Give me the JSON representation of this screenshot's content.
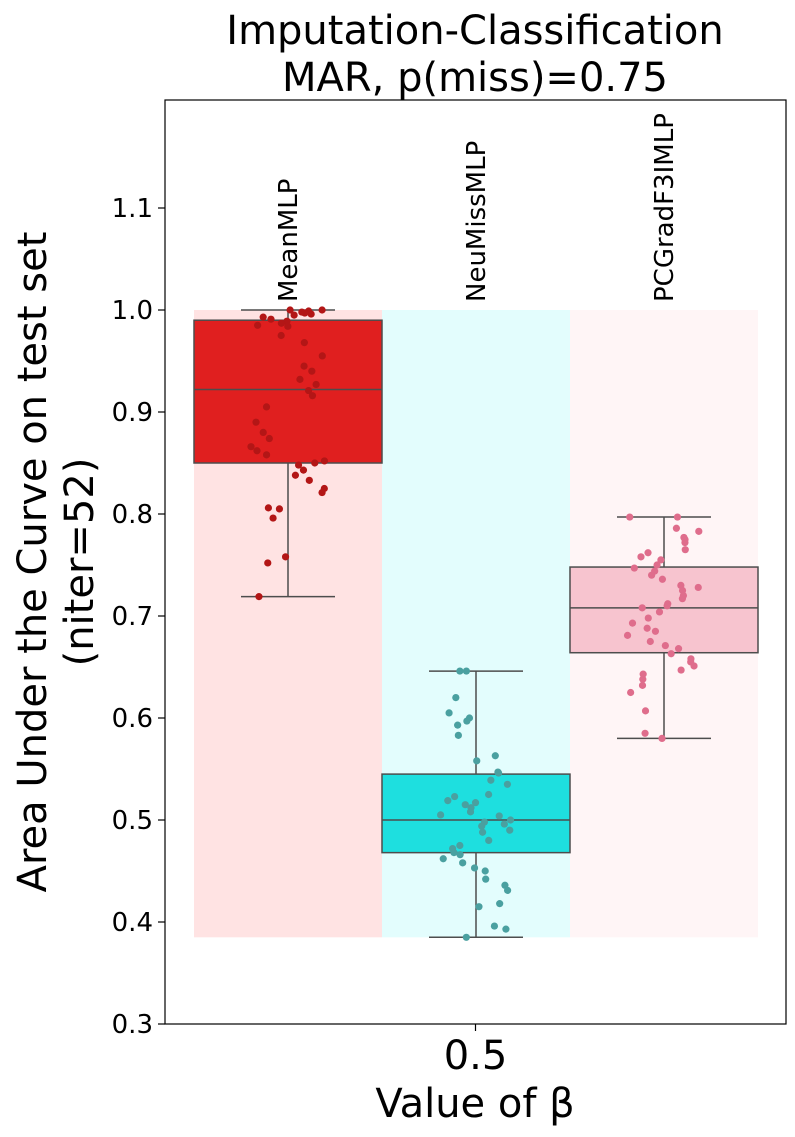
{
  "chart_data": {
    "type": "box",
    "title": [
      "Imputation-Classification",
      "MAR, p(miss)=0.75"
    ],
    "xlabel": "Value of β",
    "ylabel": [
      "Area Under the Curve on test set",
      "(niter=52)"
    ],
    "x_category": "0.5",
    "ylim": [
      0.3,
      1.21
    ],
    "yticks": [
      "0.3",
      "0.4",
      "0.5",
      "0.6",
      "0.7",
      "0.8",
      "0.9",
      "1.0",
      "1.1"
    ],
    "series": [
      {
        "name": "MeanMLP",
        "box_color": "#e01f1f",
        "point_color": "#b31616",
        "bg_color": "#ffe3e3",
        "whisker_low": 0.719,
        "q1": 0.85,
        "median": 0.922,
        "q3": 0.99,
        "whisker_high": 1.0,
        "points": [
          1.0,
          1.0,
          0.999,
          0.998,
          0.997,
          0.996,
          0.995,
          0.993,
          0.991,
          0.989,
          0.987,
          0.985,
          0.984,
          0.975,
          0.968,
          0.955,
          0.945,
          0.94,
          0.932,
          0.927,
          0.921,
          0.916,
          0.905,
          0.89,
          0.88,
          0.874,
          0.866,
          0.862,
          0.858,
          0.852,
          0.85,
          0.848,
          0.843,
          0.838,
          0.833,
          0.825,
          0.821,
          0.806,
          0.805,
          0.796,
          0.758,
          0.752,
          0.719
        ]
      },
      {
        "name": "NeuMissMLP",
        "box_color": "#1edfdf",
        "point_color": "#4aa0a0",
        "bg_color": "#e3fdfd",
        "whisker_low": 0.385,
        "q1": 0.468,
        "median": 0.5,
        "q3": 0.545,
        "whisker_high": 0.646,
        "points": [
          0.646,
          0.646,
          0.62,
          0.605,
          0.6,
          0.597,
          0.593,
          0.583,
          0.563,
          0.558,
          0.547,
          0.546,
          0.539,
          0.535,
          0.525,
          0.523,
          0.519,
          0.517,
          0.515,
          0.512,
          0.508,
          0.505,
          0.504,
          0.5,
          0.498,
          0.496,
          0.494,
          0.49,
          0.488,
          0.48,
          0.475,
          0.472,
          0.468,
          0.466,
          0.462,
          0.458,
          0.453,
          0.45,
          0.442,
          0.436,
          0.431,
          0.418,
          0.415,
          0.396,
          0.393,
          0.385
        ]
      },
      {
        "name": "PCGradF3IMLP",
        "box_color": "#f7c4cf",
        "point_color": "#df6d8c",
        "bg_color": "#fff5f6",
        "whisker_low": 0.58,
        "q1": 0.664,
        "median": 0.708,
        "q3": 0.748,
        "whisker_high": 0.797,
        "points": [
          0.797,
          0.797,
          0.786,
          0.783,
          0.777,
          0.775,
          0.772,
          0.765,
          0.762,
          0.758,
          0.755,
          0.75,
          0.747,
          0.744,
          0.74,
          0.736,
          0.73,
          0.728,
          0.725,
          0.72,
          0.717,
          0.712,
          0.71,
          0.708,
          0.704,
          0.698,
          0.693,
          0.688,
          0.685,
          0.681,
          0.675,
          0.671,
          0.668,
          0.663,
          0.658,
          0.655,
          0.651,
          0.647,
          0.643,
          0.638,
          0.632,
          0.625,
          0.607,
          0.585,
          0.58
        ]
      }
    ],
    "legend": "none",
    "grid": false
  }
}
